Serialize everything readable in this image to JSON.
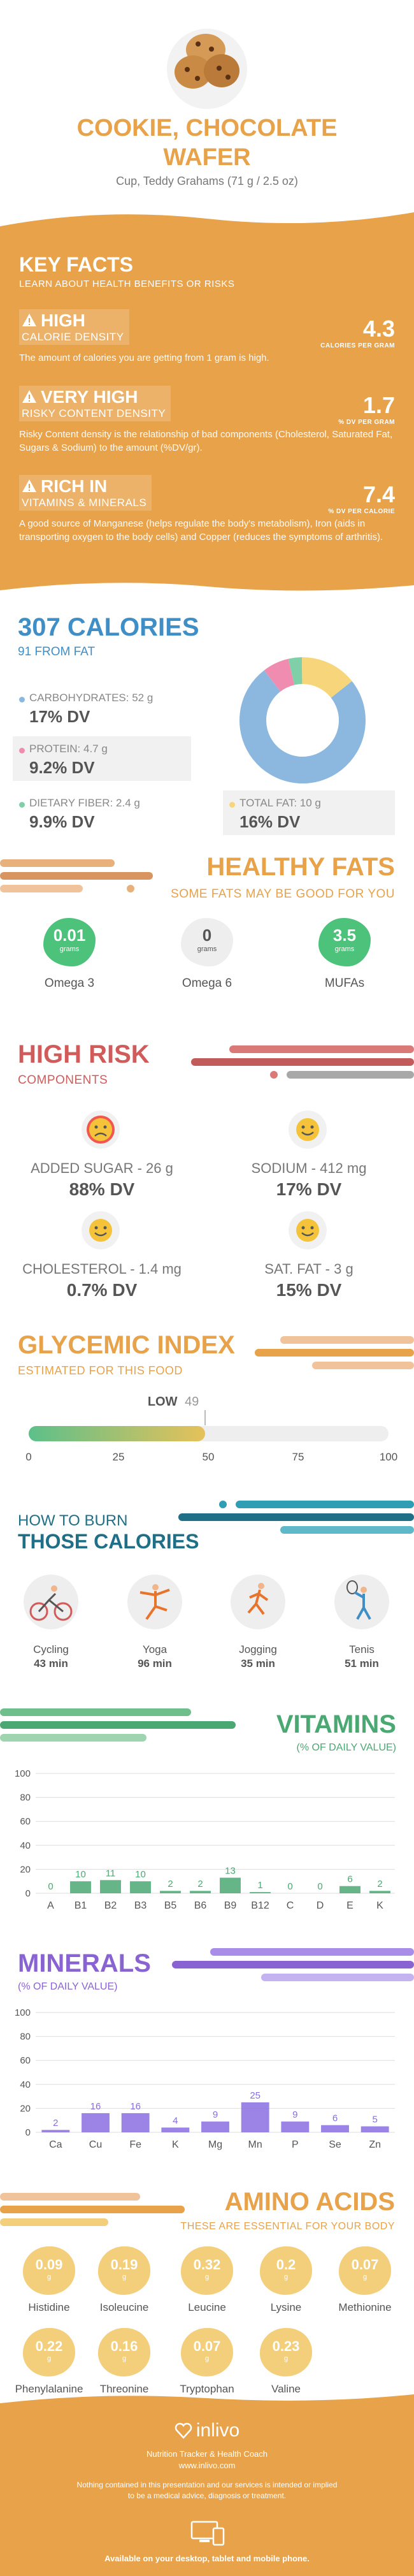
{
  "header": {
    "food_name_line1": "COOKIE, CHOCOLATE",
    "food_name_line2": "WAFER",
    "serving": "Cup, Teddy Grahams (71 g / 2.5 oz)",
    "image_icon": "cookie-icon"
  },
  "key_facts": {
    "title": "KEY FACTS",
    "subtitle": "LEARN ABOUT HEALTH BENEFITS OR RISKS",
    "items": [
      {
        "level": "HIGH",
        "label": "CALORIE DENSITY",
        "value": "4.3",
        "unit": "CALORIES PER GRAM",
        "desc": "The amount of calories you are getting from 1 gram is high."
      },
      {
        "level": "VERY HIGH",
        "label": "RISKY CONTENT DENSITY",
        "value": "1.7",
        "unit": "% DV PER GRAM",
        "desc": "Risky Content density is the relationship of bad components (Cholesterol, Saturated Fat, Sugars & Sodium) to the amount (%DV/gr)."
      },
      {
        "level": "RICH  IN",
        "label": "VITAMINS & MINERALS",
        "value": "7.4",
        "unit": "% DV PER CALORIE",
        "desc": "A good source of Manganese (helps regulate the body's metabolism), Iron (aids in transporting oxygen to the body cells) and Copper (reduces the symptoms of arthritis)."
      }
    ]
  },
  "calories": {
    "title": "307 CALORIES",
    "subtitle": "91 FROM FAT",
    "macros": [
      {
        "label": "CARBOHYDRATES: 52 g",
        "dv": "17% DV",
        "color": "#8cb8e0",
        "grams": 52
      },
      {
        "label": "PROTEIN: 4.7 g",
        "dv": "9.2% DV",
        "color": "#f08cb0",
        "grams": 4.7
      },
      {
        "label": "DIETARY FIBER: 2.4 g",
        "dv": "9.9% DV",
        "color": "#7fd0a8",
        "grams": 2.4
      },
      {
        "label": "TOTAL FAT: 10 g",
        "dv": "16% DV",
        "color": "#f7d57a",
        "grams": 10
      }
    ]
  },
  "healthy_fats": {
    "title": "HEALTHY FATS",
    "subtitle": "SOME FATS MAY BE GOOD FOR YOU",
    "items": [
      {
        "name": "Omega 3",
        "value": "0.01",
        "unit": "grams",
        "color": "#4cc27a"
      },
      {
        "name": "Omega 6",
        "value": "0",
        "unit": "grams",
        "color": "#eeeeee"
      },
      {
        "name": "MUFAs",
        "value": "3.5",
        "unit": "grams",
        "color": "#4cc27a"
      }
    ]
  },
  "high_risk": {
    "title": "HIGH RISK",
    "subtitle": "COMPONENTS",
    "items": [
      {
        "label": "ADDED SUGAR - 26 g",
        "dv": "88% DV",
        "face": "sad-face-icon"
      },
      {
        "label": "SODIUM - 412 mg",
        "dv": "17% DV",
        "face": "smile-face-icon"
      },
      {
        "label": "CHOLESTEROL - 1.4 mg",
        "dv": "0.7% DV",
        "face": "smile-face-icon"
      },
      {
        "label": "SAT. FAT - 3 g",
        "dv": "15% DV",
        "face": "smile-face-icon"
      }
    ]
  },
  "glycemic": {
    "title": "GLYCEMIC INDEX",
    "subtitle": "ESTIMATED FOR THIS FOOD",
    "level": "LOW",
    "value": "49",
    "value_num": 49,
    "ticks": [
      "0",
      "25",
      "50",
      "75",
      "100"
    ]
  },
  "burn": {
    "title1": "HOW TO BURN",
    "title2": "THOSE CALORIES",
    "items": [
      {
        "name": "Cycling",
        "time": "43 min",
        "icon": "cycling-icon"
      },
      {
        "name": "Yoga",
        "time": "96 min",
        "icon": "yoga-icon"
      },
      {
        "name": "Jogging",
        "time": "35 min",
        "icon": "jogging-icon"
      },
      {
        "name": "Tenis",
        "time": "51 min",
        "icon": "tennis-icon"
      }
    ]
  },
  "vitamins": {
    "title": "VITAMINS",
    "subtitle": "(% OF DAILY VALUE)",
    "chart_data": {
      "type": "bar",
      "categories": [
        "A",
        "B1",
        "B2",
        "B3",
        "B5",
        "B6",
        "B9",
        "B12",
        "C",
        "D",
        "E",
        "K"
      ],
      "values": [
        0,
        10,
        11,
        10,
        2,
        2,
        13,
        1,
        0,
        0,
        6,
        2
      ],
      "labels": [
        "0",
        "10",
        "11",
        "10",
        "2",
        "2",
        "13",
        "1",
        "0",
        "0",
        "6",
        "2"
      ],
      "yticks": [
        "0",
        "20",
        "40",
        "60",
        "80",
        "100"
      ],
      "ylim": [
        0,
        100
      ],
      "color": "#4aa873"
    }
  },
  "minerals": {
    "title": "MINERALS",
    "subtitle": "(% OF DAILY VALUE)",
    "chart_data": {
      "type": "bar",
      "categories": [
        "Ca",
        "Cu",
        "Fe",
        "K",
        "Mg",
        "Mn",
        "P",
        "Se",
        "Zn"
      ],
      "values": [
        2,
        16,
        16,
        4,
        9,
        25,
        9,
        6,
        5
      ],
      "labels": [
        "2",
        "16",
        "16",
        "4",
        "9",
        "25",
        "9",
        "6",
        "5"
      ],
      "yticks": [
        "0",
        "20",
        "40",
        "60",
        "80",
        "100"
      ],
      "ylim": [
        0,
        100
      ],
      "color": "#8a6ee0"
    }
  },
  "amino": {
    "title": "AMINO ACIDS",
    "subtitle": "THESE ARE ESSENTIAL FOR YOUR BODY",
    "unit": "g",
    "items": [
      {
        "name": "Histidine",
        "value": "0.09"
      },
      {
        "name": "Isoleucine",
        "value": "0.19"
      },
      {
        "name": "Leucine",
        "value": "0.32"
      },
      {
        "name": "Lysine",
        "value": "0.2"
      },
      {
        "name": "Methionine",
        "value": "0.07"
      },
      {
        "name": "Phenylalanine",
        "value": "0.22"
      },
      {
        "name": "Threonine",
        "value": "0.16"
      },
      {
        "name": "Tryptophan",
        "value": "0.07"
      },
      {
        "name": "Valine",
        "value": "0.23"
      }
    ]
  },
  "footer": {
    "brand": "inlivo",
    "tagline": "Nutrition Tracker & Health Coach",
    "url": "www.inlivo.com",
    "disclaimer": "Nothing contained in this presentation and our services is intended or implied to be a medical advice, diagnosis or treatment.",
    "availability": "Available on your desktop, tablet and mobile phone."
  }
}
